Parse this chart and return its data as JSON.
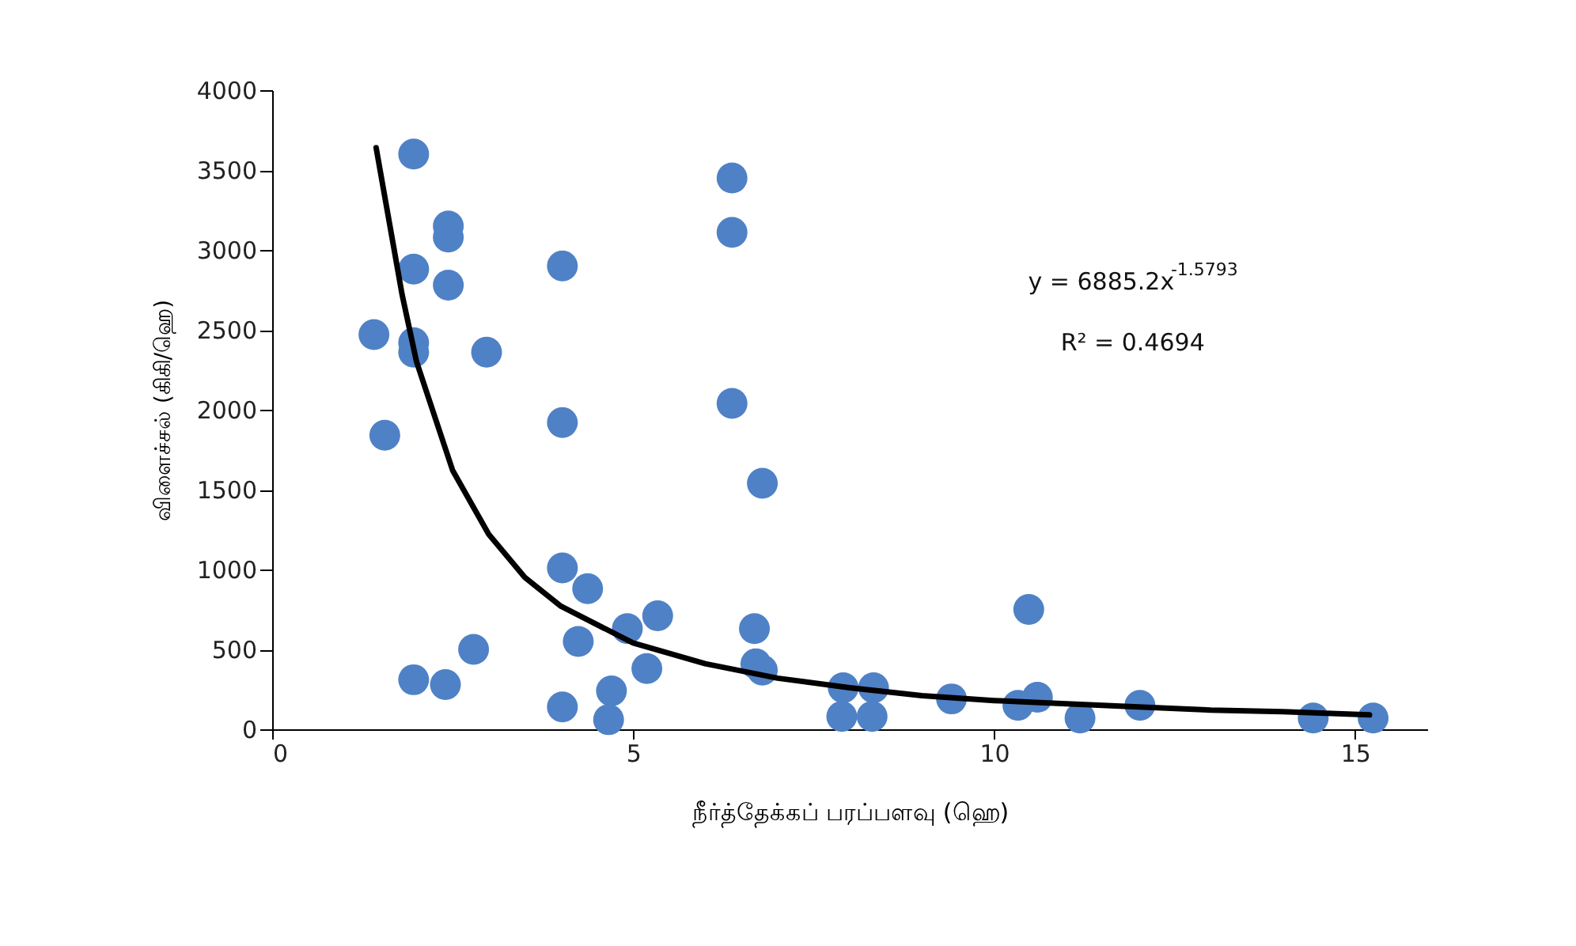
{
  "chart_data": {
    "type": "scatter",
    "xlabel": "நீர்த்தேக்கப் பரப்பளவு (ஹெ)",
    "ylabel": "விளைச்சல் (கிகி/ஹெ)",
    "xlim": [
      0,
      16
    ],
    "xticks": [
      0,
      5,
      10,
      15
    ],
    "ylim": [
      0,
      4000
    ],
    "yticks": [
      0,
      500,
      1000,
      1500,
      2000,
      2500,
      3000,
      3500,
      4000
    ],
    "grid": false,
    "marker": "circle",
    "annotations": [
      "y = 6885.2x$^{-1.5793}$",
      "R² = 0.4694"
    ],
    "series": [
      {
        "type": "scatter",
        "color": "#4f81c6",
        "x": [
          1.96,
          1.41,
          1.56,
          1.96,
          1.96,
          1.96,
          2.44,
          2.44,
          2.44,
          2.97,
          1.96,
          2.4,
          2.79,
          4.02,
          4.02,
          4.02,
          4.37,
          4.24,
          4.02,
          4.7,
          4.66,
          4.92,
          5.34,
          5.19,
          6.37,
          6.37,
          6.37,
          6.79,
          6.68,
          6.7,
          6.79,
          7.91,
          8.33,
          7.89,
          8.31,
          9.41,
          10.33,
          10.6,
          10.48,
          11.19,
          12.02,
          14.42,
          15.25
        ],
        "values": [
          3600,
          2470,
          1840,
          2880,
          2420,
          2360,
          3150,
          3080,
          2780,
          2360,
          310,
          280,
          500,
          2900,
          1920,
          1010,
          880,
          550,
          140,
          240,
          60,
          630,
          710,
          380,
          3450,
          3110,
          2040,
          1540,
          630,
          410,
          370,
          260,
          260,
          80,
          80,
          190,
          150,
          200,
          750,
          70,
          150,
          70,
          70
        ]
      },
      {
        "type": "line",
        "color": "#000000",
        "line_style": "solid",
        "marker": "none",
        "x": [
          1.44,
          1.8,
          2,
          2.5,
          3,
          3.5,
          4,
          5,
          6,
          7,
          8,
          9,
          10,
          11,
          12,
          13,
          14,
          15.2
        ],
        "values": [
          3640,
          2720,
          2300,
          1620,
          1220,
          950,
          770,
          540,
          410,
          320,
          260,
          210,
          180,
          160,
          140,
          120,
          110,
          90
        ]
      }
    ]
  }
}
